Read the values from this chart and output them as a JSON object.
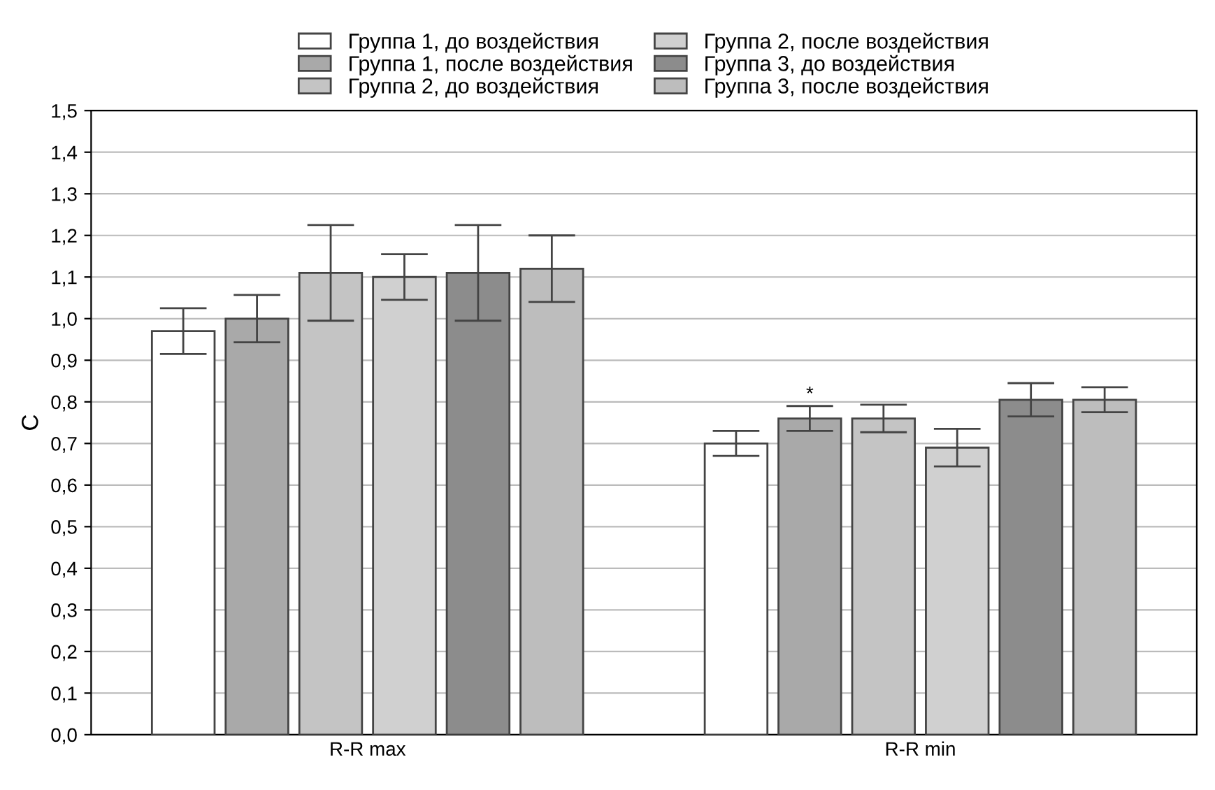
{
  "chart_data": {
    "type": "bar",
    "ylabel": "С",
    "categories": [
      "R-R max",
      "R-R min"
    ],
    "series": [
      {
        "name": "Группа 1, до воздействия",
        "color": "#ffffff",
        "values": [
          0.97,
          0.7
        ],
        "errors": [
          0.055,
          0.03
        ]
      },
      {
        "name": "Группа 1, после воздействия",
        "color": "#a9a9a9",
        "values": [
          1.0,
          0.76
        ],
        "errors": [
          0.057,
          0.03
        ],
        "value_labels": [
          null,
          "*"
        ]
      },
      {
        "name": "Группа 2, до воздействия",
        "color": "#c4c4c4",
        "values": [
          1.11,
          0.76
        ],
        "errors": [
          0.115,
          0.033
        ]
      },
      {
        "name": "Группа 2, после воздействия",
        "color": "#d0d0d0",
        "values": [
          1.1,
          0.69
        ],
        "errors": [
          0.055,
          0.045
        ]
      },
      {
        "name": "Группа 3, до воздействия",
        "color": "#8c8c8c",
        "values": [
          1.11,
          0.805
        ],
        "errors": [
          0.115,
          0.04
        ]
      },
      {
        "name": "Группа 3, после воздействия",
        "color": "#bdbdbd",
        "values": [
          1.12,
          0.805
        ],
        "errors": [
          0.08,
          0.03
        ]
      }
    ],
    "ylim": [
      0,
      1.5
    ],
    "yticks": [
      {
        "value": 0,
        "label": "0,0"
      },
      {
        "value": 0.1,
        "label": "0,1"
      },
      {
        "value": 0.2,
        "label": "0,2"
      },
      {
        "value": 0.3,
        "label": "0,3"
      },
      {
        "value": 0.4,
        "label": "0,4"
      },
      {
        "value": 0.5,
        "label": "0,5"
      },
      {
        "value": 0.6,
        "label": "0,6"
      },
      {
        "value": 0.7,
        "label": "0,7"
      },
      {
        "value": 0.8,
        "label": "0,8"
      },
      {
        "value": 0.9,
        "label": "0,9"
      },
      {
        "value": 1.0,
        "label": "1,0"
      },
      {
        "value": 1.1,
        "label": "1,1"
      },
      {
        "value": 1.2,
        "label": "1,2"
      },
      {
        "value": 1.3,
        "label": "1,3"
      },
      {
        "value": 1.4,
        "label": "1,4"
      },
      {
        "value": 1.5,
        "label": "1,5"
      }
    ],
    "grid": "y",
    "legend": "top"
  }
}
